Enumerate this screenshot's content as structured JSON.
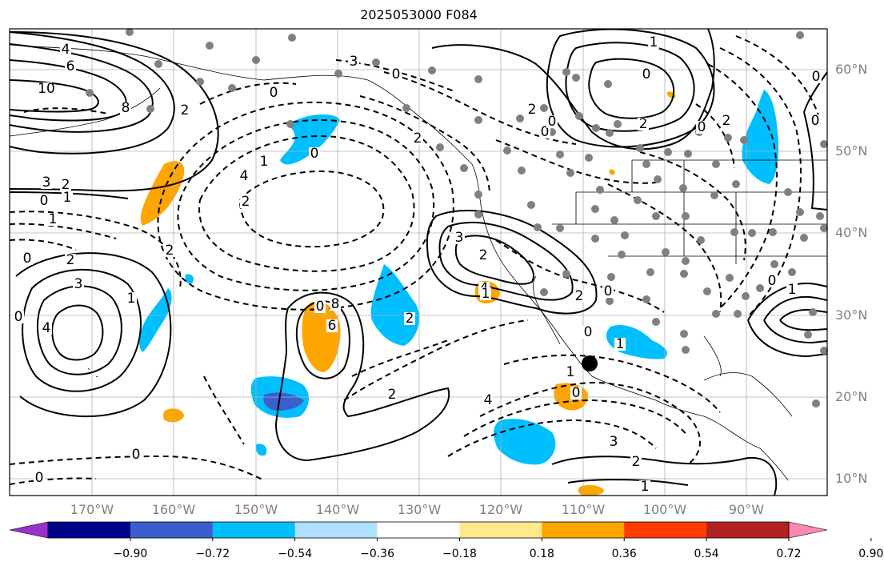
{
  "title": "2025053000 F084",
  "latitude_labels": [
    "60°N",
    "50°N",
    "40°N",
    "30°N",
    "20°N",
    "10°N"
  ],
  "longitude_labels": [
    "170°W",
    "160°W",
    "150°W",
    "140°W",
    "130°W",
    "120°W",
    "110°W",
    "100°W",
    "90°W"
  ],
  "colorbar": {
    "ticks": [
      "−0.90",
      "−0.72",
      "−0.54",
      "−0.36",
      "−0.18",
      "0.18",
      "0.36",
      "0.54",
      "0.72",
      "0.90"
    ],
    "colors": [
      "#9932cc",
      "#00008b",
      "#3a5fcd",
      "#00bfff",
      "#b0e0ff",
      "#ffffff",
      "#ffe98a",
      "#ffa500",
      "#ff3d00",
      "#b22222",
      "#ff88b0"
    ]
  },
  "contour_labels": [
    "4",
    "6",
    "10",
    "8",
    "2",
    "0",
    "3",
    "1",
    "2",
    "0",
    "1",
    "0",
    "2",
    "3",
    "4",
    "0",
    "2",
    "1",
    "0",
    "6",
    "8",
    "0",
    "3",
    "2",
    "1",
    "4",
    "2",
    "0",
    "2",
    "3",
    "4",
    "1",
    "2",
    "2",
    "0",
    "0",
    "1",
    "0",
    "4",
    "3",
    "2",
    "1",
    "2",
    "0",
    "0",
    "2",
    "1",
    "0",
    "0",
    "2",
    "0",
    "1",
    "0",
    "0",
    "0",
    "2",
    "0",
    "1"
  ]
}
